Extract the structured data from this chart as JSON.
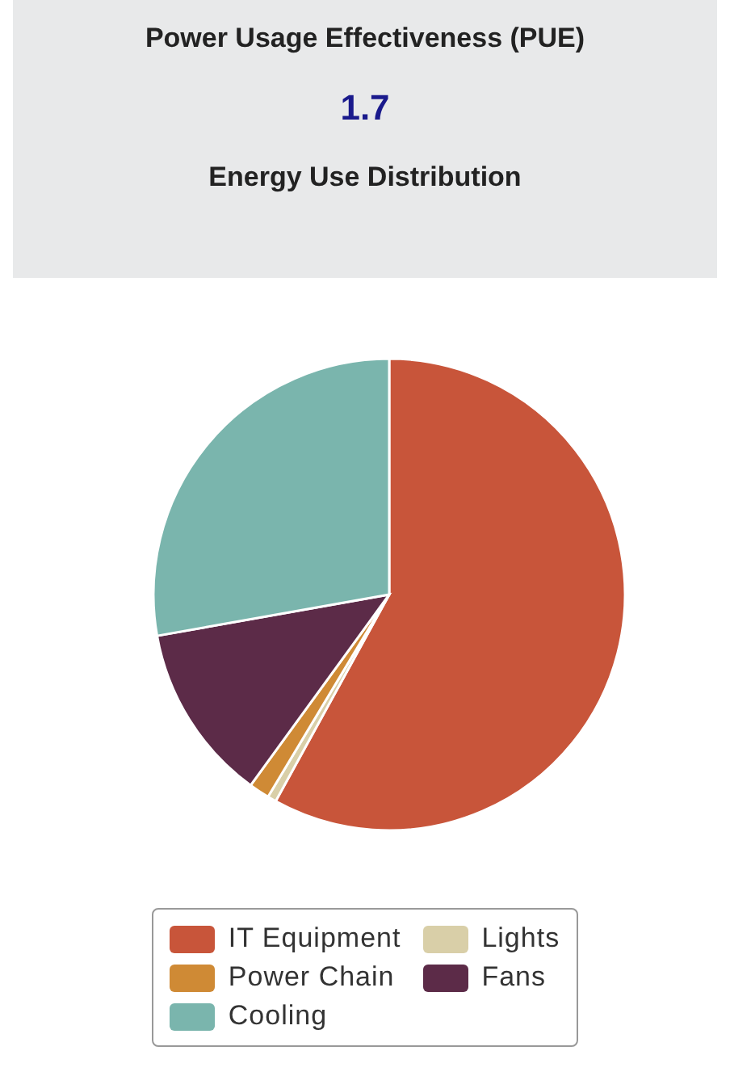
{
  "chart_data": {
    "type": "pie",
    "title": "Power Usage Effectiveness (PUE)",
    "subtitle": "1.7",
    "annotations": [
      "Energy Use Distribution"
    ],
    "categories": [
      "IT Equipment",
      "Lights",
      "Power Chain",
      "Fans",
      "Cooling"
    ],
    "values": [
      58,
      0.6,
      1.4,
      12.2,
      27.8
    ],
    "colors": [
      "#c8553a",
      "#d9cfa8",
      "#cf8a35",
      "#5c2b48",
      "#7ab5ad"
    ],
    "legend": "bottom"
  }
}
